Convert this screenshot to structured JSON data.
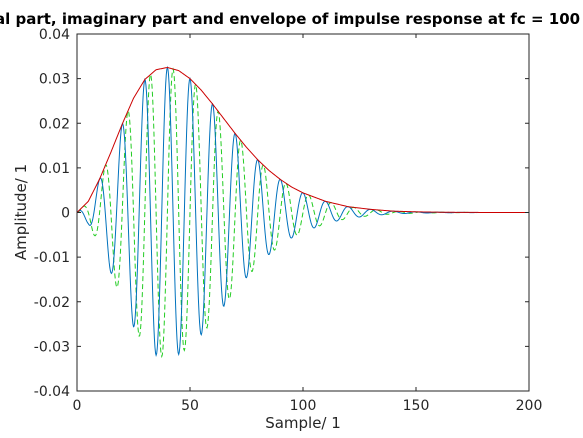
{
  "chart_data": {
    "type": "line",
    "title": "al part, imaginary part and envelope of impulse response at fc = 100",
    "xlabel": "Sample/ 1",
    "ylabel": "Amplitude/ 1",
    "xlim": [
      0,
      200
    ],
    "ylim": [
      -0.04,
      0.04
    ],
    "grid": false,
    "legend": "none",
    "xticks": [
      0,
      50,
      100,
      150,
      200
    ],
    "xtick_labels": [
      "0",
      "50",
      "100",
      "150",
      "200"
    ],
    "yticks": [
      0.04,
      0.03,
      0.02,
      0.01,
      0,
      -0.01,
      -0.02,
      -0.03,
      -0.04
    ],
    "ytick_labels": [
      "0.04",
      "0.03",
      "0.02",
      "0.01",
      "0",
      "-0.01",
      "-0.02",
      "-0.03",
      "-0.04"
    ],
    "series": [
      {
        "role": "real part",
        "color": "#0072BD",
        "style": "solid",
        "sample_rate_per_sample": 1,
        "cycles_per_sample": 0.1,
        "x_start": 0,
        "x_end": 180,
        "phase": "cos"
      },
      {
        "role": "imaginary part",
        "color": "#22CC22",
        "style": "dashed",
        "sample_rate_per_sample": 1,
        "cycles_per_sample": 0.1,
        "x_start": 0,
        "x_end": 180,
        "phase": "sin"
      },
      {
        "role": "envelope",
        "color": "#CC0000",
        "style": "solid",
        "x_start": 0,
        "x_end": 200
      }
    ],
    "envelope_points": {
      "x": [
        0,
        5,
        10,
        15,
        20,
        25,
        30,
        35,
        40,
        45,
        50,
        55,
        60,
        65,
        70,
        75,
        80,
        85,
        90,
        95,
        100,
        110,
        120,
        130,
        140,
        150,
        160,
        170,
        180,
        190,
        200
      ],
      "y": [
        0.0,
        0.0025,
        0.0075,
        0.0135,
        0.0198,
        0.0256,
        0.0298,
        0.032,
        0.0325,
        0.0318,
        0.03,
        0.0274,
        0.0243,
        0.021,
        0.0177,
        0.0146,
        0.0118,
        0.0094,
        0.0074,
        0.0057,
        0.0044,
        0.0025,
        0.0013,
        0.0007,
        0.0003,
        0.00015,
        7e-05,
        3e-05,
        1e-05,
        0.0,
        0.0
      ]
    }
  }
}
